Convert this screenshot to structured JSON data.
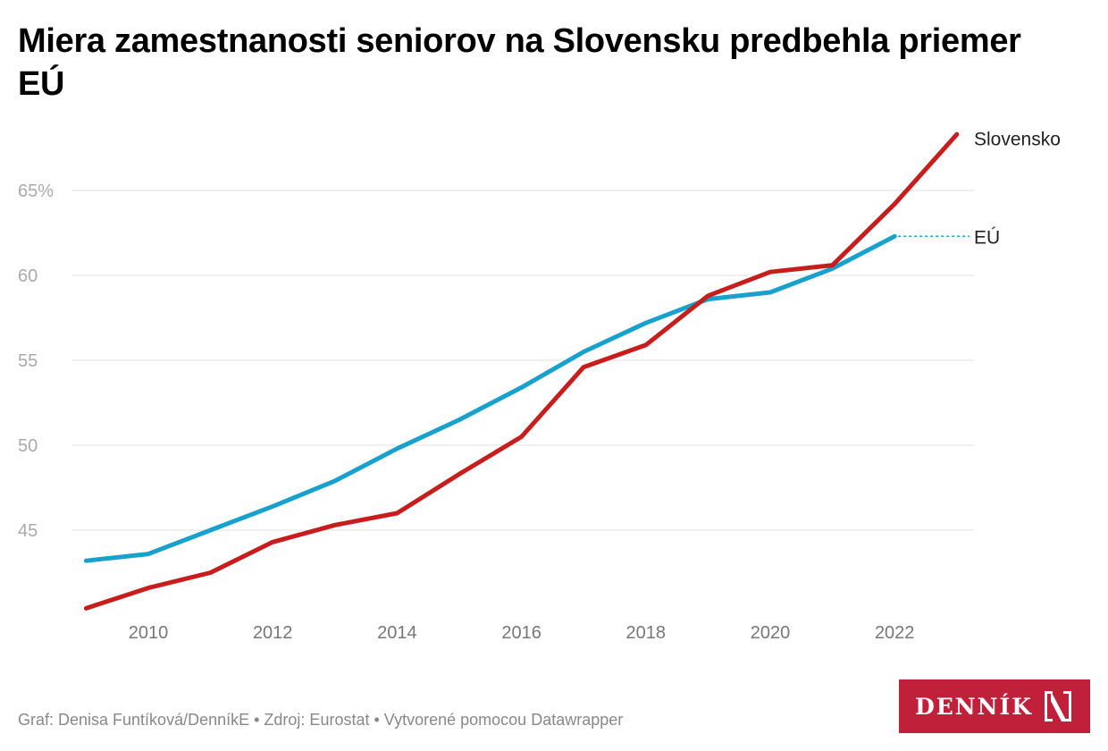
{
  "title": "Miera zamestnanosti seniorov na Slovensku predbehla priemer EÚ",
  "footer": "Graf: Denisa Funtíková/DenníkE • Zdroj: Eurostat • Vytvorené pomocou Datawrapper",
  "logo": {
    "text": "DENNÍK",
    "mark": "N"
  },
  "chart_data": {
    "type": "line",
    "title": "Miera zamestnanosti seniorov na Slovensku predbehla priemer EÚ",
    "x": [
      2009,
      2010,
      2011,
      2012,
      2013,
      2014,
      2015,
      2016,
      2017,
      2018,
      2019,
      2020,
      2021,
      2022,
      2023
    ],
    "x_ticks": [
      "2010",
      "2012",
      "2014",
      "2016",
      "2018",
      "2020",
      "2022"
    ],
    "y_ticks": [
      "45",
      "50",
      "55",
      "60",
      "65%"
    ],
    "y_tick_values": [
      45,
      50,
      55,
      60,
      65
    ],
    "ylim": [
      39.5,
      69
    ],
    "grid": true,
    "series": [
      {
        "name": "Slovensko",
        "color": "#c71e1d",
        "values": [
          40.4,
          41.6,
          42.5,
          44.3,
          45.3,
          46.0,
          48.3,
          50.5,
          54.6,
          55.9,
          58.8,
          60.2,
          60.6,
          64.2,
          68.3
        ]
      },
      {
        "name": "EÚ",
        "color": "#18a1cd",
        "values": [
          43.2,
          43.6,
          45.0,
          46.4,
          47.9,
          49.8,
          51.5,
          53.4,
          55.5,
          57.2,
          58.6,
          59.0,
          60.4,
          62.3,
          null
        ]
      }
    ]
  }
}
